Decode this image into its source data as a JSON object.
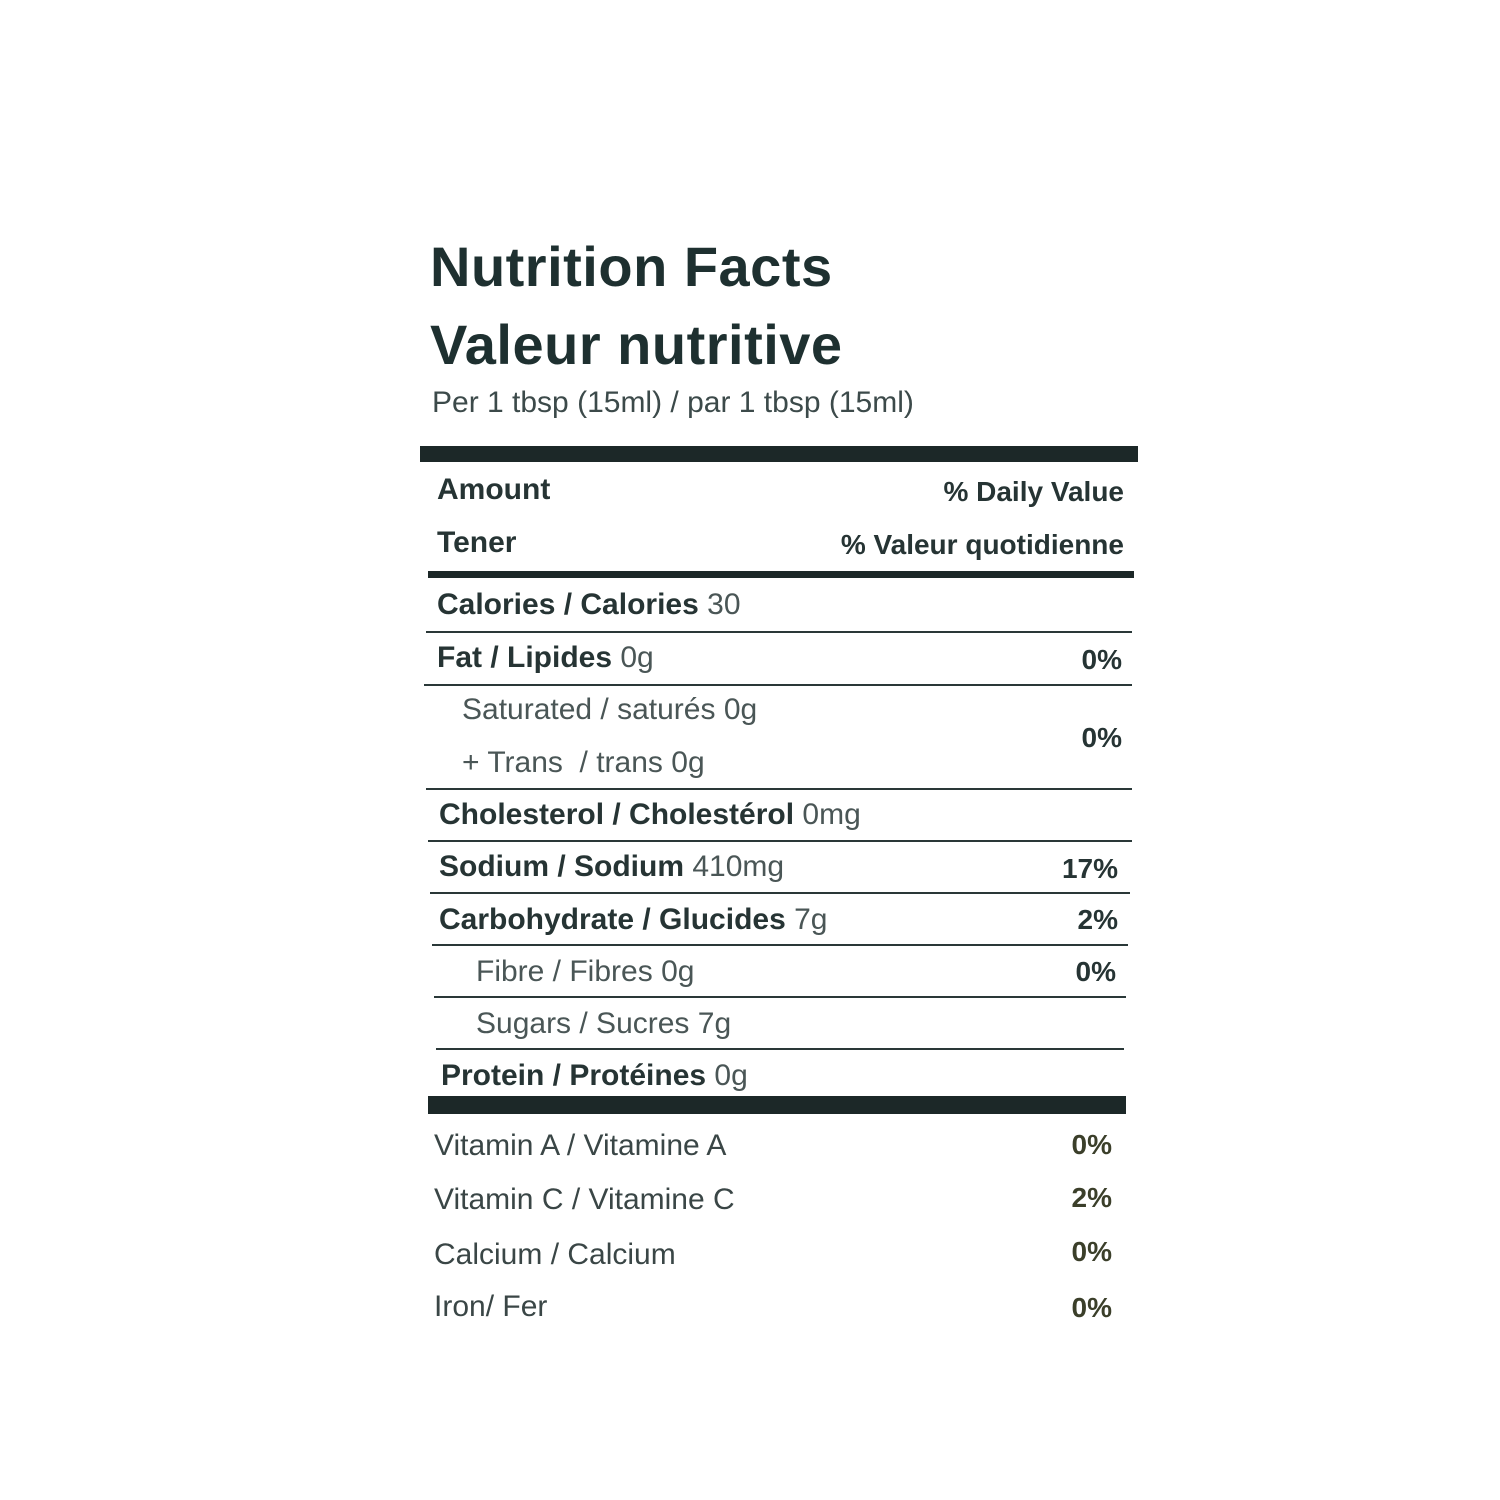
{
  "title_en": "Nutrition Facts",
  "title_fr": "Valeur nutritive",
  "serving": "Per 1 tbsp (15ml) / par 1 tbsp (15ml)",
  "header": {
    "amount": "Amount",
    "tener": "Tener",
    "dv_en": "% Daily Value",
    "dv_fr": "% Valeur quotidienne"
  },
  "nutrients": {
    "calories": {
      "label": "Calories / Calories",
      "amount": "30"
    },
    "fat": {
      "label": "Fat / Lipides",
      "amount": "0g",
      "dv": "0%"
    },
    "saturated": {
      "label": "Saturated / saturés",
      "amount": "0g"
    },
    "trans": {
      "label": "+ Trans  / trans",
      "amount": "0g"
    },
    "sat_trans_dv": "0%",
    "cholesterol": {
      "label": "Cholesterol / Cholestérol",
      "amount": "0mg"
    },
    "sodium": {
      "label": "Sodium / Sodium",
      "amount": "410mg",
      "dv": "17%"
    },
    "carbohydrate": {
      "label": "Carbohydrate / Glucides",
      "amount": "7g",
      "dv": "2%"
    },
    "fibre": {
      "label": "Fibre / Fibres",
      "amount": "0g",
      "dv": "0%"
    },
    "sugars": {
      "label": "Sugars / Sucres",
      "amount": "7g"
    },
    "protein": {
      "label": "Protein / Protéines",
      "amount": "0g"
    }
  },
  "vitamins": [
    {
      "label": "Vitamin A / Vitamine A",
      "dv": "0%"
    },
    {
      "label": "Vitamin C / Vitamine C",
      "dv": "2%"
    },
    {
      "label": "Calcium / Calcium",
      "dv": "0%"
    },
    {
      "label": "Iron/ Fer",
      "dv": "0%"
    }
  ]
}
